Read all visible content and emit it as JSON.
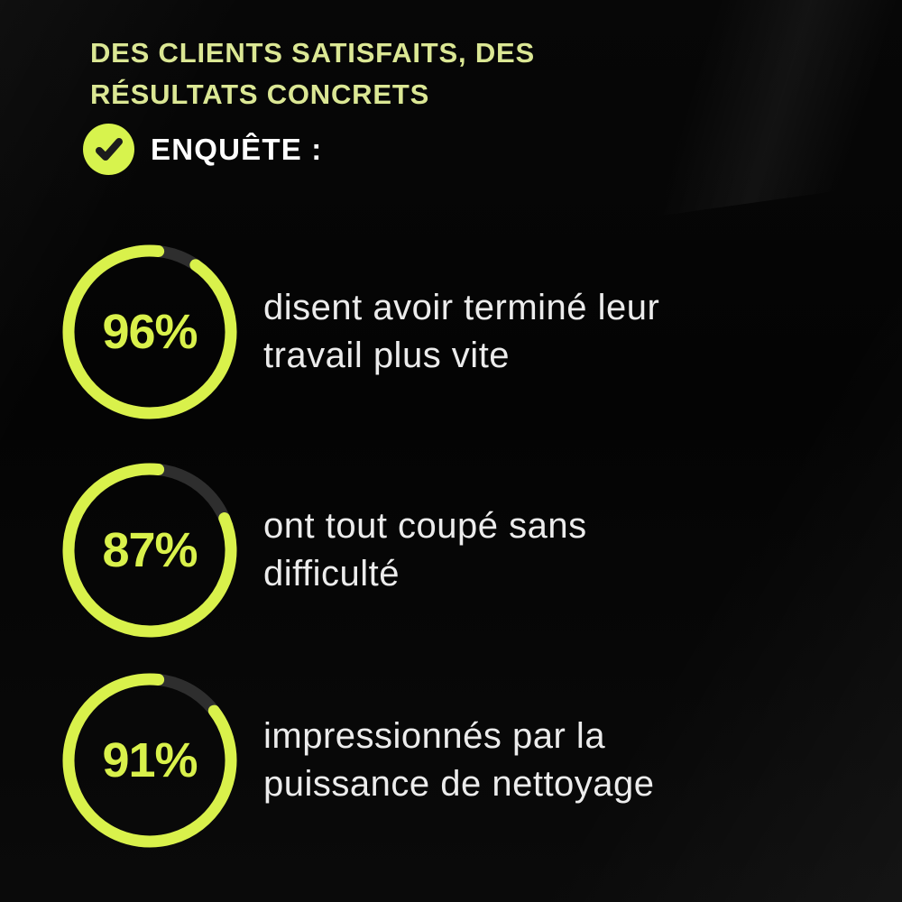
{
  "header": {
    "title_line1": "DES CLIENTS SATISFAITS, DES",
    "title_line2": "RÉSULTATS CONCRETS",
    "survey_label": "ENQUÊTE :"
  },
  "colors": {
    "accent": "#d9f14b",
    "title_text": "#dbe794",
    "body_text": "#ececec",
    "ring_track": "#2e2e2e",
    "background": "#060606",
    "check_glyph": "#1c1c1c",
    "check_badge": "#d7f34d"
  },
  "icons": {
    "check": "checkmark-in-circle"
  },
  "chart_data": {
    "type": "donut",
    "title": "DES CLIENTS SATISFAITS, DES RÉSULTATS CONCRETS",
    "subtitle": "ENQUÊTE :",
    "unit": "%",
    "legend_position": "right-of-each-ring",
    "ring": {
      "color": "#d9f14b",
      "track_color": "#2e2e2e",
      "start": "top",
      "direction": "clockwise",
      "stroke_width": 13
    },
    "items": [
      {
        "value": 96,
        "display": "96%",
        "label": "disent avoir terminé leur travail plus vite",
        "label_lines": [
          "disent avoir terminé leur",
          "travail plus vite"
        ]
      },
      {
        "value": 87,
        "display": "87%",
        "label": "ont tout coupé sans difficulté",
        "label_lines": [
          "ont tout coupé sans",
          "difficulté"
        ]
      },
      {
        "value": 91,
        "display": "91%",
        "label": "impressionnés par la puissance de nettoyage",
        "label_lines": [
          "impressionnés par la",
          "puissance de nettoyage"
        ]
      }
    ]
  }
}
